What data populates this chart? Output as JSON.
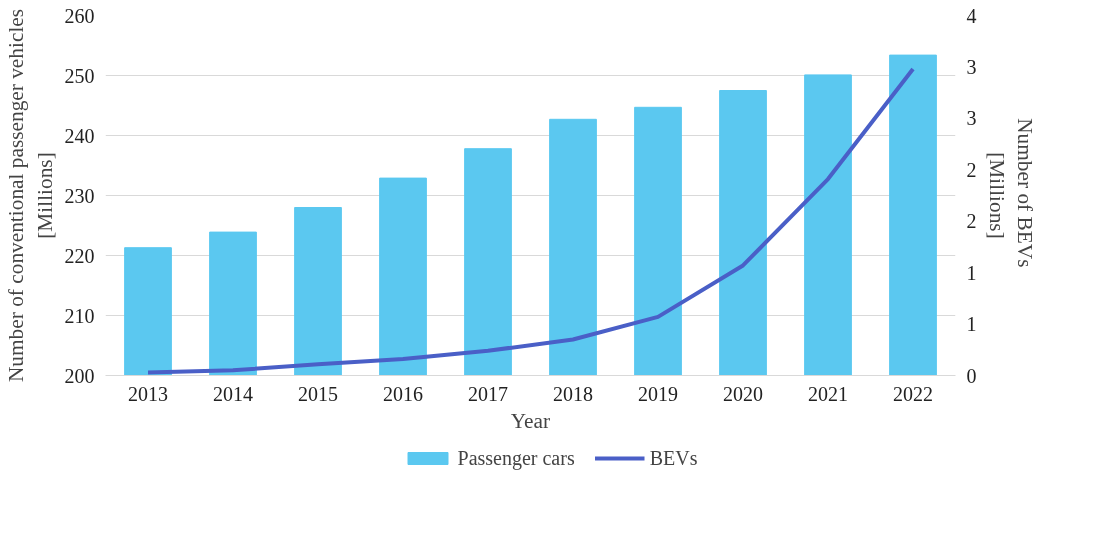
{
  "chart_data": {
    "type": "bar",
    "xlabel": "Year",
    "ylabel": "Number of conventional passenger vehicles\n[Millions]",
    "y2label": "Number of  BEVs\n[Millions]",
    "categories": [
      "2013",
      "2014",
      "2015",
      "2016",
      "2017",
      "2018",
      "2019",
      "2020",
      "2021",
      "2022"
    ],
    "series": [
      {
        "name": "Passenger cars",
        "color": "#5bc8f0",
        "values": [
          221.3,
          223.9,
          228.0,
          232.9,
          237.8,
          242.7,
          244.7,
          247.5,
          250.1,
          253.4
        ]
      },
      {
        "name": "BEVs",
        "type": "line",
        "axis": "y2",
        "color": "#4a5fc7",
        "values": [
          0.03,
          0.05,
          0.11,
          0.16,
          0.24,
          0.35,
          0.57,
          1.07,
          1.91,
          2.98
        ]
      }
    ],
    "ylim": [
      200,
      260
    ],
    "yticks": [
      200,
      210,
      220,
      230,
      240,
      250,
      260
    ],
    "y2lim": [
      0,
      3.5
    ],
    "y2ticks": [
      0,
      {
        "value": 0.5,
        "label": "1"
      },
      1,
      {
        "value": 1.5,
        "label": "2"
      },
      2,
      {
        "value": 2.5,
        "label": "3"
      },
      3,
      {
        "value": 3.5,
        "label": "4"
      }
    ],
    "grid": "y",
    "legend": "bottom",
    "marker": "none",
    "line_style": "solid"
  }
}
